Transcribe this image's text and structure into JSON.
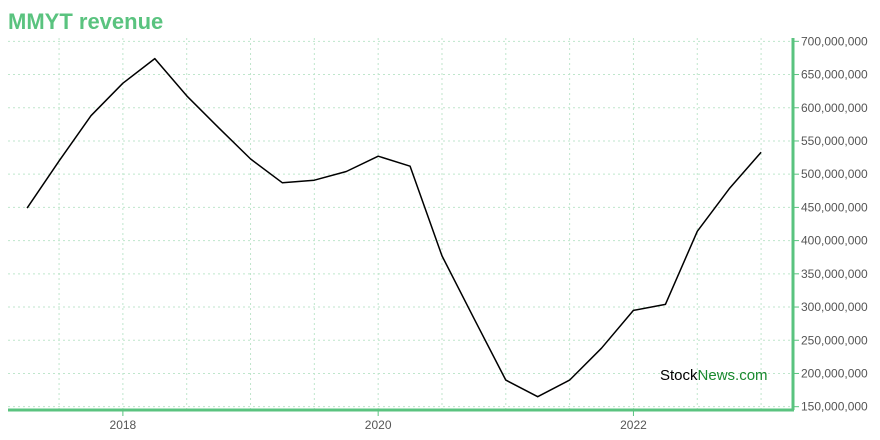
{
  "chart_data": {
    "type": "line",
    "title": "MMYT revenue",
    "xlabel": "",
    "ylabel": "",
    "x_ticks": [
      "2018",
      "2020",
      "2022"
    ],
    "x_tick_years": [
      2018,
      2020,
      2022
    ],
    "xlim": [
      2017.1,
      2023.25
    ],
    "ylim": [
      145000000,
      705000000
    ],
    "y_ticks": [
      150000000,
      200000000,
      250000000,
      300000000,
      350000000,
      400000000,
      450000000,
      500000000,
      550000000,
      600000000,
      650000000,
      700000000
    ],
    "y_tick_labels": [
      "150,000,000",
      "200,000,000",
      "250,000,000",
      "300,000,000",
      "350,000,000",
      "400,000,000",
      "450,000,000",
      "500,000,000",
      "550,000,000",
      "600,000,000",
      "650,000,000",
      "700,000,000"
    ],
    "grid": true,
    "axis_position": "right",
    "series": [
      {
        "color": "#000000",
        "points": [
          {
            "x": 2017.25,
            "y": 449000000
          },
          {
            "x": 2017.5,
            "y": 520000000
          },
          {
            "x": 2017.75,
            "y": 588000000
          },
          {
            "x": 2018.0,
            "y": 637000000
          },
          {
            "x": 2018.25,
            "y": 674000000
          },
          {
            "x": 2018.5,
            "y": 618000000
          },
          {
            "x": 2018.75,
            "y": 570000000
          },
          {
            "x": 2019.0,
            "y": 523000000
          },
          {
            "x": 2019.25,
            "y": 487000000
          },
          {
            "x": 2019.5,
            "y": 491000000
          },
          {
            "x": 2019.75,
            "y": 504000000
          },
          {
            "x": 2020.0,
            "y": 527000000
          },
          {
            "x": 2020.25,
            "y": 512000000
          },
          {
            "x": 2020.5,
            "y": 377000000
          },
          {
            "x": 2020.75,
            "y": 283000000
          },
          {
            "x": 2021.0,
            "y": 190000000
          },
          {
            "x": 2021.25,
            "y": 165000000
          },
          {
            "x": 2021.5,
            "y": 190000000
          },
          {
            "x": 2021.75,
            "y": 238000000
          },
          {
            "x": 2022.0,
            "y": 295000000
          },
          {
            "x": 2022.25,
            "y": 304000000
          },
          {
            "x": 2022.5,
            "y": 414000000
          },
          {
            "x": 2022.75,
            "y": 478000000
          },
          {
            "x": 2023.0,
            "y": 533000000
          }
        ]
      }
    ]
  },
  "watermark": {
    "part1": "Stock",
    "part2": "News",
    "part3": ".com"
  },
  "colors": {
    "title": "#5ac37f",
    "axis": "#5ac37f",
    "grid": "#bfe6cc",
    "line": "#000000"
  }
}
